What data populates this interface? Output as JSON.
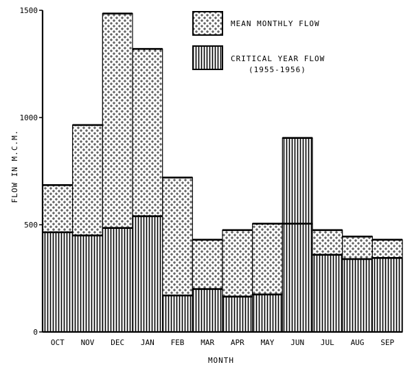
{
  "chart_data": {
    "type": "bar",
    "title": "",
    "xlabel": "MONTH",
    "ylabel": "FLOW IN M.C.M.",
    "ylim": [
      0,
      1500
    ],
    "yticks": [
      0,
      500,
      1000,
      1500
    ],
    "grid": false,
    "legend_position": "top-right",
    "categories": [
      "OCT",
      "NOV",
      "DEC",
      "JAN",
      "FEB",
      "MAR",
      "APR",
      "MAY",
      "JUN",
      "JUL",
      "AUG",
      "SEP"
    ],
    "series": [
      {
        "name": "MEAN MONTHLY FLOW",
        "pattern": "dotted",
        "values": [
          685,
          965,
          1485,
          1320,
          720,
          430,
          475,
          505,
          505,
          475,
          445,
          430
        ]
      },
      {
        "name": "CRITICAL YEAR FLOW",
        "subtitle": "(1955-1956)",
        "pattern": "vertical-hatch",
        "values": [
          465,
          450,
          485,
          540,
          170,
          200,
          165,
          175,
          905,
          360,
          340,
          345
        ]
      }
    ]
  }
}
